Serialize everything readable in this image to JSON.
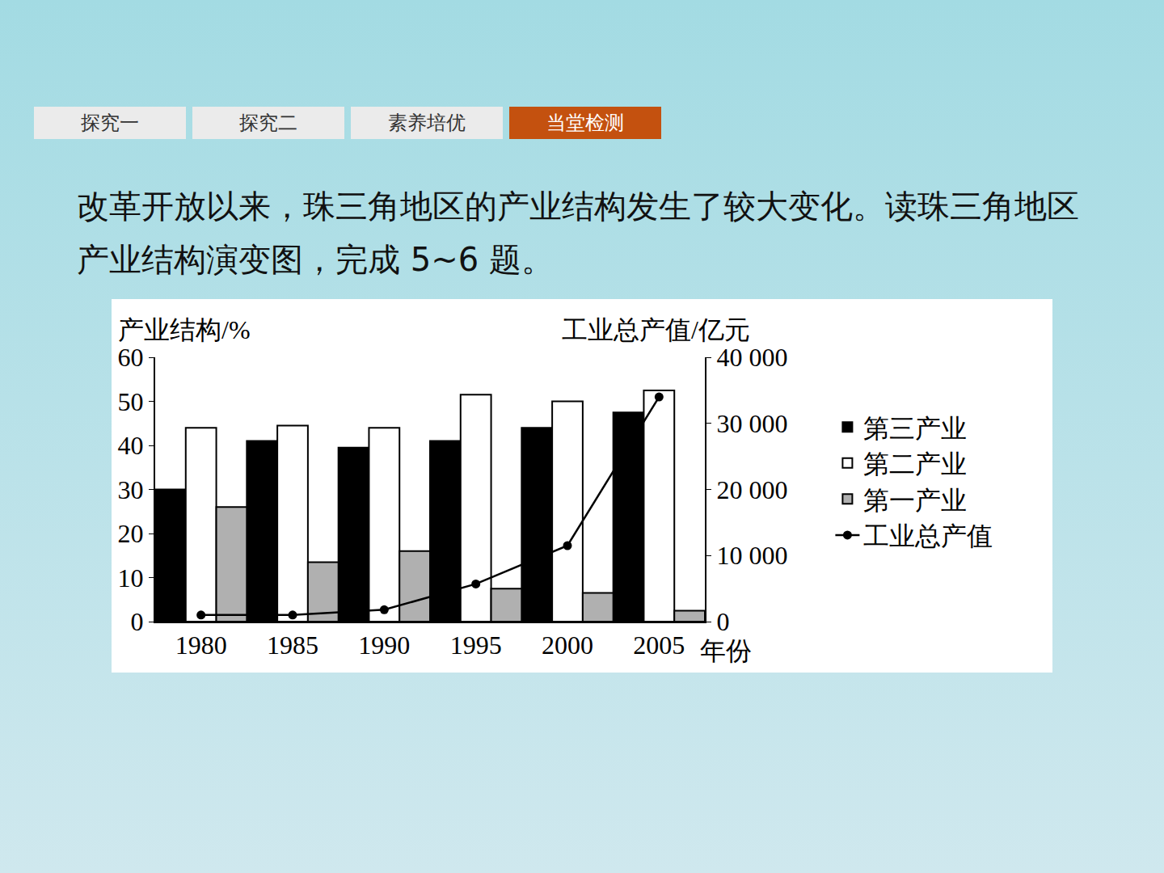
{
  "tabs": {
    "items": [
      "探究一",
      "探究二",
      "素养培优",
      "当堂检测"
    ],
    "active": "当堂检测"
  },
  "question": "改革开放以来，珠三角地区的产业结构发生了较大变化。读珠三角地区产业结构演变图，完成 5~6 题。",
  "chart_data": {
    "type": "bar",
    "categories": [
      "1980",
      "1985",
      "1990",
      "1995",
      "2000",
      "2005"
    ],
    "x_label": "年份",
    "y_label": "产业结构/%",
    "y2_label": "工业总产值/亿元",
    "ylim": [
      0,
      60
    ],
    "yticks": [
      0,
      10,
      20,
      30,
      40,
      50,
      60
    ],
    "y2lim": [
      0,
      40000
    ],
    "y2ticks": [
      0,
      {
        "value": 10000,
        "label": "10 000"
      },
      {
        "value": 20000,
        "label": "20 000"
      },
      {
        "value": 30000,
        "label": "30 000"
      },
      {
        "value": 40000,
        "label": "40 000"
      }
    ],
    "grid": false,
    "legend": "right",
    "data_labels": false,
    "series": [
      {
        "name": "第三产业",
        "type": "bar",
        "color": "#000000",
        "values": [
          30,
          41,
          39.5,
          41,
          44,
          47.5
        ]
      },
      {
        "name": "第二产业",
        "type": "bar",
        "color": "#ffffff",
        "values": [
          44,
          44.5,
          44,
          51.5,
          50,
          52.5
        ]
      },
      {
        "name": "第一产业",
        "type": "bar",
        "color": "#b0b0b0",
        "values": [
          26,
          13.5,
          16,
          7.5,
          6.5,
          2.5
        ]
      },
      {
        "name": "工业总产值",
        "type": "line",
        "axis": "y2",
        "color": "#000000",
        "marker": "circle",
        "line_style": "solid",
        "values": [
          1000,
          1000,
          1800,
          5700,
          11500,
          34000
        ]
      }
    ]
  }
}
